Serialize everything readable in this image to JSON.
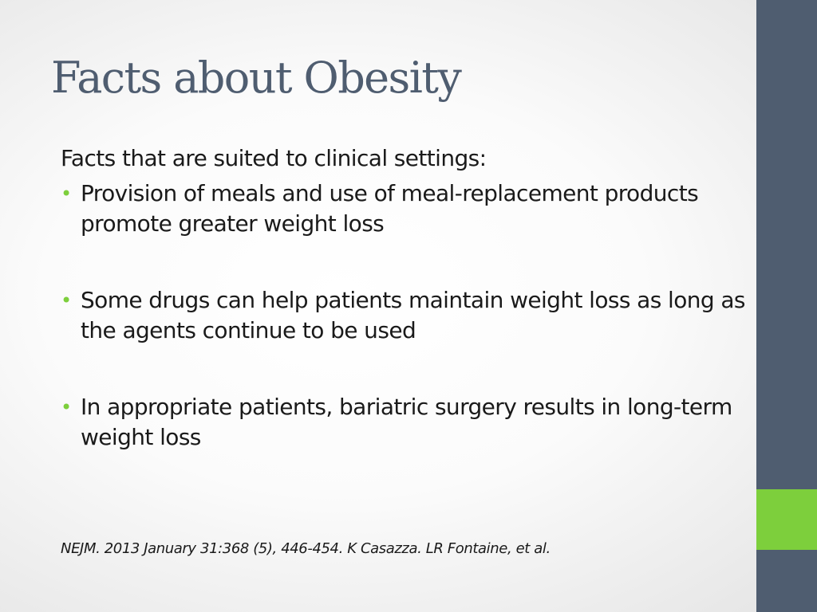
{
  "slide": {
    "title": "Facts about Obesity",
    "intro": "Facts that are suited to clinical settings:",
    "bullets": [
      {
        "text": "Provision of meals and use of meal-replacement products promote greater weight loss"
      },
      {
        "text": "Some drugs can help patients maintain weight loss as long as the agents continue to be used"
      },
      {
        "text": "In appropriate patients, bariatric surgery results in long-term weight loss"
      }
    ],
    "bullet_glyph": "•",
    "citation": "NEJM. 2013 January 31:368 (5), 446-454. K Casazza. LR Fontaine, et al."
  },
  "colors": {
    "title": "#4f5d70",
    "side_bar": "#4f5d70",
    "accent": "#7dcf3c",
    "body_text": "#1a1a1a"
  }
}
